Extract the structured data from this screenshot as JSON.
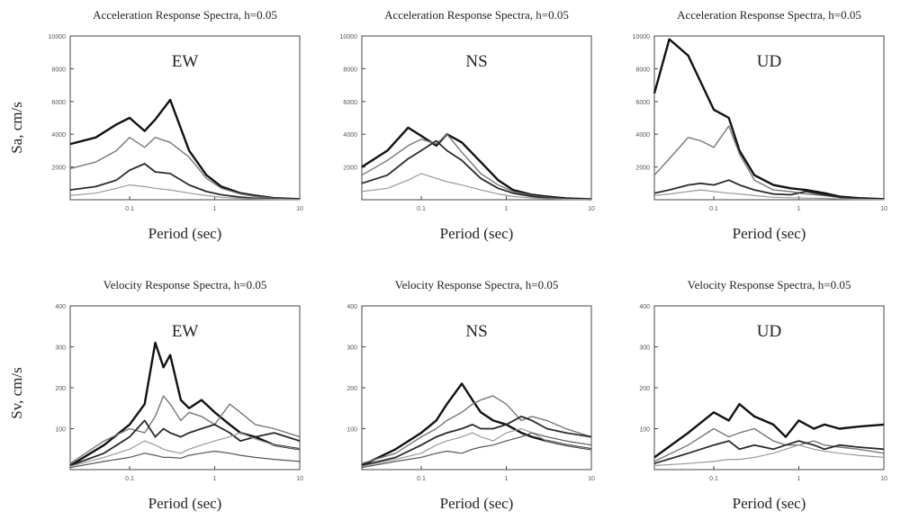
{
  "figure": {
    "row_labels": {
      "acceleration": "Sa, cm/s",
      "velocity": "Sv, cm/s"
    }
  },
  "chart_data": [
    {
      "type": "line",
      "row": 0,
      "col": 0,
      "title": "Acceleration Response Spectra, h=0.05",
      "component": "EW",
      "xlabel": "Period (sec)",
      "ylabel": "Sa, cm/s",
      "xscale": "log",
      "xlim": [
        0.02,
        10
      ],
      "ylim": [
        0,
        10000
      ],
      "xticks": [
        "0.1",
        "1",
        "10"
      ],
      "yticks": [
        "2000",
        "4000",
        "6000",
        "8000",
        "10000"
      ],
      "x": [
        0.02,
        0.04,
        0.07,
        0.1,
        0.15,
        0.2,
        0.3,
        0.5,
        0.8,
        1.2,
        2,
        3,
        5,
        10
      ],
      "series": [
        {
          "values": [
            3400,
            3800,
            4600,
            5000,
            4200,
            4900,
            6100,
            3000,
            1500,
            800,
            400,
            250,
            100,
            40
          ]
        },
        {
          "values": [
            1900,
            2300,
            3000,
            3800,
            3200,
            3800,
            3500,
            2600,
            1300,
            700,
            350,
            200,
            80,
            30
          ]
        },
        {
          "values": [
            600,
            800,
            1200,
            1800,
            2200,
            1700,
            1600,
            900,
            500,
            300,
            160,
            90,
            40,
            20
          ]
        },
        {
          "values": [
            250,
            400,
            700,
            900,
            800,
            700,
            600,
            400,
            250,
            150,
            80,
            50,
            20,
            10
          ]
        }
      ]
    },
    {
      "type": "line",
      "row": 0,
      "col": 1,
      "title": "Acceleration Response Spectra, h=0.05",
      "component": "NS",
      "xlabel": "Period (sec)",
      "ylabel": "",
      "xscale": "log",
      "xlim": [
        0.02,
        10
      ],
      "ylim": [
        0,
        10000
      ],
      "xticks": [
        "0.1",
        "1",
        "10"
      ],
      "yticks": [
        "2000",
        "4000",
        "6000",
        "8000",
        "10000"
      ],
      "x": [
        0.02,
        0.04,
        0.07,
        0.1,
        0.15,
        0.2,
        0.3,
        0.5,
        0.8,
        1.2,
        2,
        3,
        5,
        10
      ],
      "series": [
        {
          "values": [
            2000,
            3000,
            4400,
            3900,
            3300,
            4000,
            3500,
            2300,
            1200,
            600,
            300,
            200,
            80,
            30
          ]
        },
        {
          "values": [
            1500,
            2400,
            3300,
            3700,
            3400,
            4000,
            2900,
            1600,
            900,
            500,
            250,
            150,
            60,
            20
          ]
        },
        {
          "values": [
            1000,
            1500,
            2500,
            3000,
            3600,
            3000,
            2400,
            1300,
            700,
            400,
            200,
            110,
            50,
            20
          ]
        },
        {
          "values": [
            500,
            700,
            1200,
            1600,
            1300,
            1100,
            900,
            600,
            350,
            200,
            100,
            60,
            25,
            10
          ]
        }
      ]
    },
    {
      "type": "line",
      "row": 0,
      "col": 2,
      "title": "Acceleration Response Spectra, h=0.05",
      "component": "UD",
      "xlabel": "Period (sec)",
      "ylabel": "",
      "xscale": "log",
      "xlim": [
        0.02,
        10
      ],
      "ylim": [
        0,
        10000
      ],
      "xticks": [
        "0.1",
        "1",
        "10"
      ],
      "yticks": [
        "2000",
        "4000",
        "6000",
        "8000",
        "10000"
      ],
      "x": [
        0.02,
        0.03,
        0.05,
        0.07,
        0.1,
        0.15,
        0.2,
        0.3,
        0.5,
        0.8,
        1.2,
        2,
        3,
        5,
        10
      ],
      "series": [
        {
          "values": [
            6500,
            9800,
            8800,
            7200,
            5500,
            5000,
            3000,
            1500,
            900,
            700,
            600,
            400,
            200,
            100,
            40
          ]
        },
        {
          "values": [
            1500,
            2500,
            3800,
            3600,
            3200,
            4500,
            2800,
            1200,
            600,
            500,
            350,
            250,
            150,
            60,
            30
          ]
        },
        {
          "values": [
            400,
            600,
            900,
            1000,
            900,
            1200,
            900,
            600,
            350,
            300,
            500,
            300,
            150,
            60,
            30
          ]
        },
        {
          "values": [
            250,
            350,
            500,
            600,
            500,
            400,
            350,
            250,
            150,
            120,
            100,
            80,
            50,
            30,
            10
          ]
        }
      ]
    },
    {
      "type": "line",
      "row": 1,
      "col": 0,
      "title": "Velocity Response Spectra, h=0.05",
      "component": "EW",
      "xlabel": "Period (sec)",
      "ylabel": "Sv, cm/s",
      "xscale": "log",
      "xlim": [
        0.02,
        10
      ],
      "ylim": [
        0,
        400
      ],
      "xticks": [
        "0.1",
        "1",
        "10"
      ],
      "yticks": [
        "100",
        "200",
        "300",
        "400"
      ],
      "x": [
        0.02,
        0.05,
        0.1,
        0.15,
        0.2,
        0.25,
        0.3,
        0.4,
        0.5,
        0.7,
        1,
        1.5,
        2,
        3,
        5,
        10
      ],
      "series": [
        {
          "values": [
            10,
            60,
            110,
            160,
            310,
            250,
            280,
            170,
            150,
            170,
            140,
            110,
            90,
            80,
            60,
            50
          ]
        },
        {
          "values": [
            15,
            70,
            100,
            90,
            130,
            180,
            160,
            120,
            140,
            130,
            110,
            160,
            140,
            110,
            100,
            80
          ]
        },
        {
          "values": [
            10,
            40,
            80,
            120,
            80,
            100,
            90,
            80,
            90,
            100,
            110,
            90,
            70,
            80,
            90,
            70
          ]
        },
        {
          "values": [
            8,
            30,
            50,
            70,
            60,
            50,
            45,
            40,
            50,
            60,
            70,
            80,
            90,
            75,
            60,
            50
          ]
        },
        {
          "values": [
            5,
            20,
            30,
            40,
            35,
            30,
            30,
            28,
            35,
            40,
            45,
            40,
            35,
            30,
            25,
            20
          ]
        }
      ]
    },
    {
      "type": "line",
      "row": 1,
      "col": 1,
      "title": "Velocity Response Spectra, h=0.05",
      "component": "NS",
      "xlabel": "Period (sec)",
      "ylabel": "",
      "xscale": "log",
      "xlim": [
        0.02,
        10
      ],
      "ylim": [
        0,
        400
      ],
      "xticks": [
        "0.1",
        "1",
        "10"
      ],
      "yticks": [
        "100",
        "200",
        "300",
        "400"
      ],
      "x": [
        0.02,
        0.05,
        0.1,
        0.15,
        0.2,
        0.3,
        0.4,
        0.5,
        0.7,
        1,
        1.5,
        2,
        3,
        5,
        10
      ],
      "series": [
        {
          "values": [
            10,
            50,
            90,
            120,
            160,
            210,
            170,
            140,
            120,
            110,
            90,
            80,
            70,
            60,
            50
          ]
        },
        {
          "values": [
            15,
            40,
            80,
            100,
            120,
            140,
            160,
            170,
            180,
            160,
            120,
            130,
            120,
            100,
            80
          ]
        },
        {
          "values": [
            10,
            30,
            60,
            80,
            90,
            100,
            110,
            100,
            100,
            110,
            130,
            120,
            100,
            90,
            80
          ]
        },
        {
          "values": [
            8,
            25,
            40,
            60,
            70,
            80,
            90,
            80,
            70,
            90,
            100,
            90,
            70,
            60,
            50
          ]
        },
        {
          "values": [
            5,
            20,
            30,
            40,
            45,
            40,
            50,
            55,
            60,
            70,
            80,
            90,
            80,
            70,
            60
          ]
        }
      ]
    },
    {
      "type": "line",
      "row": 1,
      "col": 2,
      "title": "Velocity Response Spectra, h=0.05",
      "component": "UD",
      "xlabel": "Period (sec)",
      "ylabel": "",
      "xscale": "log",
      "xlim": [
        0.02,
        10
      ],
      "ylim": [
        0,
        400
      ],
      "xticks": [
        "0.1",
        "1",
        "10"
      ],
      "yticks": [
        "100",
        "200",
        "300",
        "400"
      ],
      "x": [
        0.02,
        0.05,
        0.1,
        0.15,
        0.2,
        0.3,
        0.5,
        0.7,
        1,
        1.5,
        2,
        3,
        5,
        10
      ],
      "series": [
        {
          "values": [
            30,
            90,
            140,
            120,
            160,
            130,
            110,
            80,
            120,
            100,
            110,
            100,
            105,
            110
          ]
        },
        {
          "values": [
            20,
            60,
            100,
            80,
            90,
            100,
            70,
            60,
            60,
            70,
            60,
            55,
            50,
            40
          ]
        },
        {
          "values": [
            15,
            40,
            60,
            70,
            50,
            60,
            50,
            60,
            70,
            60,
            50,
            60,
            55,
            50
          ]
        },
        {
          "values": [
            10,
            15,
            20,
            25,
            25,
            30,
            40,
            50,
            60,
            50,
            45,
            40,
            35,
            30
          ]
        }
      ]
    }
  ]
}
